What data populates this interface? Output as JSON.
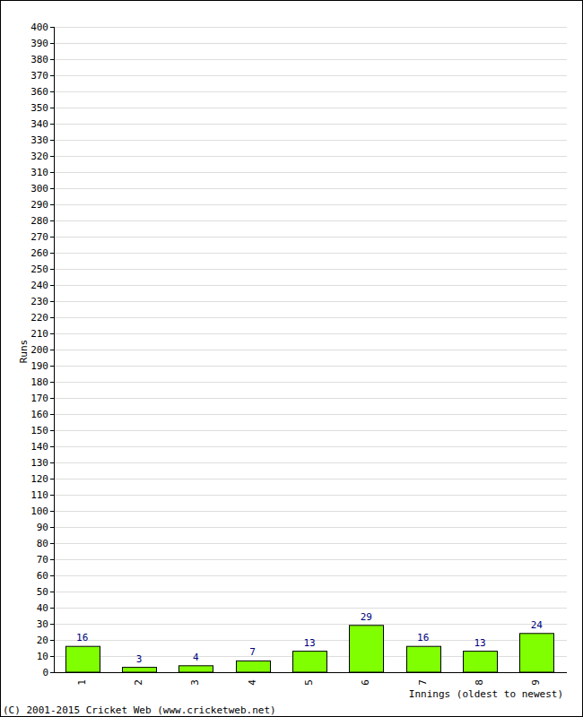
{
  "chart_data": {
    "type": "bar",
    "xlabel": "Innings (oldest to newest)",
    "ylabel": "Runs",
    "annotations": [
      "(C) 2001-2015 Cricket Web (www.cricketweb.net)"
    ],
    "categories": [
      "1",
      "2",
      "3",
      "4",
      "5",
      "6",
      "7",
      "8",
      "9"
    ],
    "values": [
      16,
      3,
      4,
      7,
      13,
      29,
      16,
      13,
      24
    ],
    "color": "#80ff00",
    "ylim": [
      0,
      400
    ],
    "yticks": [
      0,
      10,
      20,
      30,
      40,
      50,
      60,
      70,
      80,
      90,
      100,
      110,
      120,
      130,
      140,
      150,
      160,
      170,
      180,
      190,
      200,
      210,
      220,
      230,
      240,
      250,
      260,
      270,
      280,
      290,
      300,
      310,
      320,
      330,
      340,
      350,
      360,
      370,
      380,
      390,
      400
    ],
    "grid": true,
    "data_labels": true
  }
}
